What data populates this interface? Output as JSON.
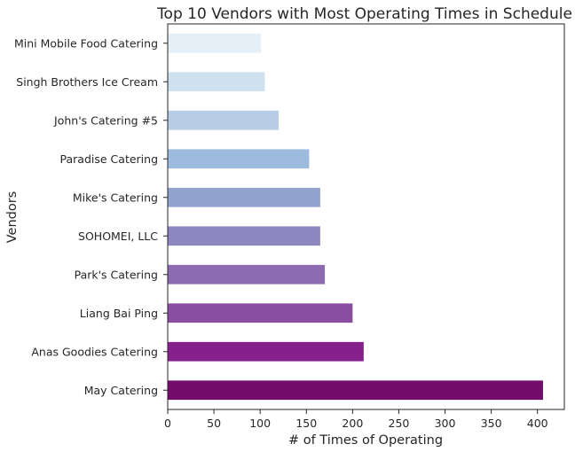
{
  "chart_data": {
    "type": "bar",
    "orientation": "horizontal",
    "title": "Top 10 Vendors with Most Operating Times in Schedule",
    "xlabel": "# of Times of Operating",
    "ylabel": "Vendors",
    "xlim": [
      0,
      430
    ],
    "xticks": [
      0,
      50,
      100,
      150,
      200,
      250,
      300,
      350,
      400
    ],
    "grid": false,
    "categories": [
      "May Catering",
      "Anas Goodies Catering",
      "Liang Bai Ping",
      "Park's Catering",
      "SOHOMEI, LLC",
      "Mike's Catering",
      "Paradise Catering",
      "John's Catering #5",
      "Singh Brothers Ice Cream",
      "Mini Mobile Food Catering"
    ],
    "values": [
      406,
      212,
      200,
      170,
      165,
      165,
      153,
      120,
      105,
      101
    ],
    "colors": [
      "#730c6b",
      "#85208c",
      "#8a4ea1",
      "#8c6bb1",
      "#8c87c1",
      "#92a2cf",
      "#9dbcdd",
      "#b7cde6",
      "#cfe0ee",
      "#e4eff7"
    ]
  }
}
